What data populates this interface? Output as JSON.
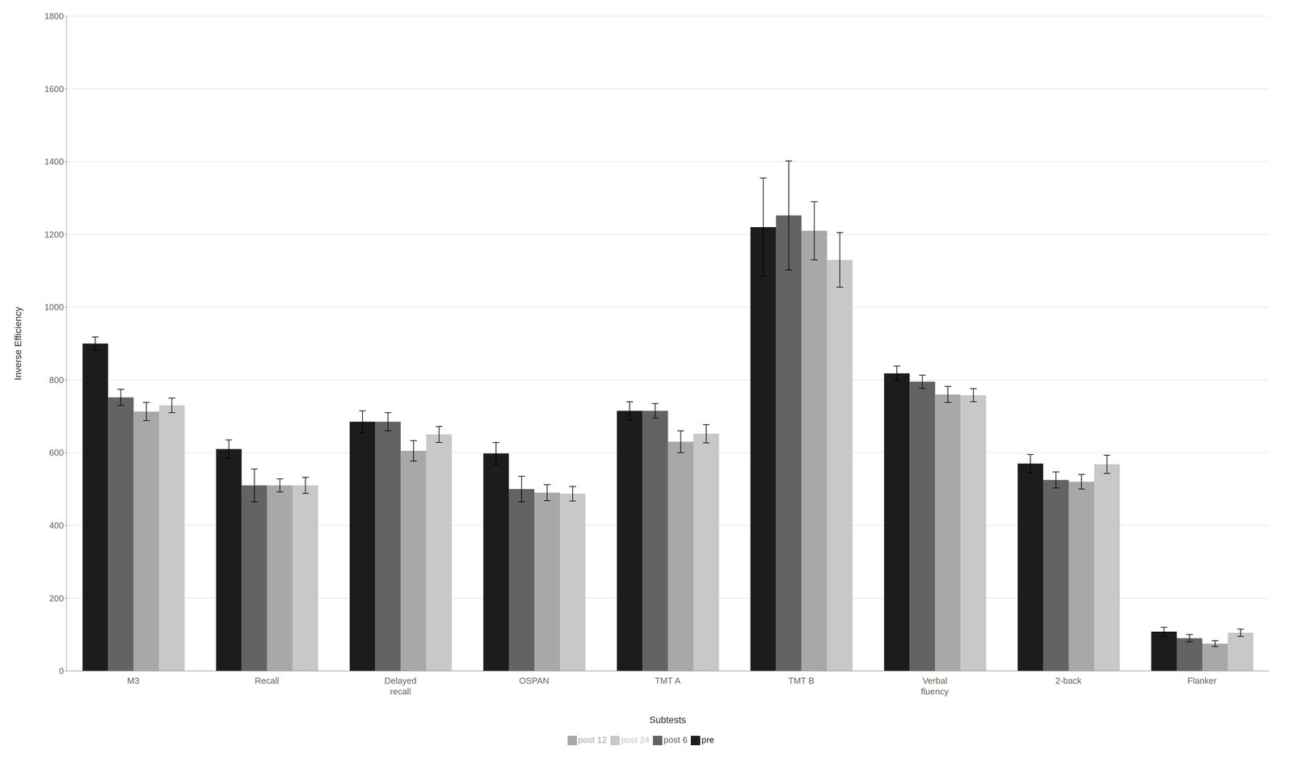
{
  "chart_data": {
    "type": "bar",
    "xlabel": "Subtests",
    "ylabel": "Inverse Efficiency",
    "categories": [
      "M3",
      "Recall",
      "Delayed\nrecall",
      "OSPAN",
      "TMT A",
      "TMT B",
      "Verbal\nfluency",
      "2-back",
      "Flanker"
    ],
    "series": [
      {
        "name": "pre",
        "color": "#1c1c1c",
        "values": [
          900,
          610,
          685,
          598,
          715,
          1220,
          818,
          570,
          108
        ],
        "errors": [
          18,
          25,
          30,
          30,
          25,
          135,
          20,
          25,
          12
        ]
      },
      {
        "name": "post 6",
        "color": "#636363",
        "values": [
          752,
          510,
          685,
          500,
          715,
          1252,
          795,
          525,
          90
        ],
        "errors": [
          22,
          45,
          25,
          35,
          20,
          150,
          18,
          22,
          10
        ]
      },
      {
        "name": "post 12",
        "color": "#a8a8a8",
        "values": [
          713,
          510,
          605,
          490,
          630,
          1210,
          760,
          520,
          75
        ],
        "errors": [
          25,
          18,
          28,
          22,
          30,
          80,
          22,
          20,
          8
        ]
      },
      {
        "name": "post 24",
        "color": "#c8c8c8",
        "values": [
          730,
          510,
          650,
          487,
          652,
          1130,
          758,
          568,
          105
        ],
        "errors": [
          20,
          22,
          22,
          20,
          25,
          75,
          18,
          25,
          10
        ]
      }
    ],
    "ylim": [
      0,
      1800
    ],
    "yticks": [
      0,
      200,
      400,
      600,
      800,
      1000,
      1200,
      1400,
      1600,
      1800
    ],
    "grid": true,
    "legend": "bottom"
  }
}
